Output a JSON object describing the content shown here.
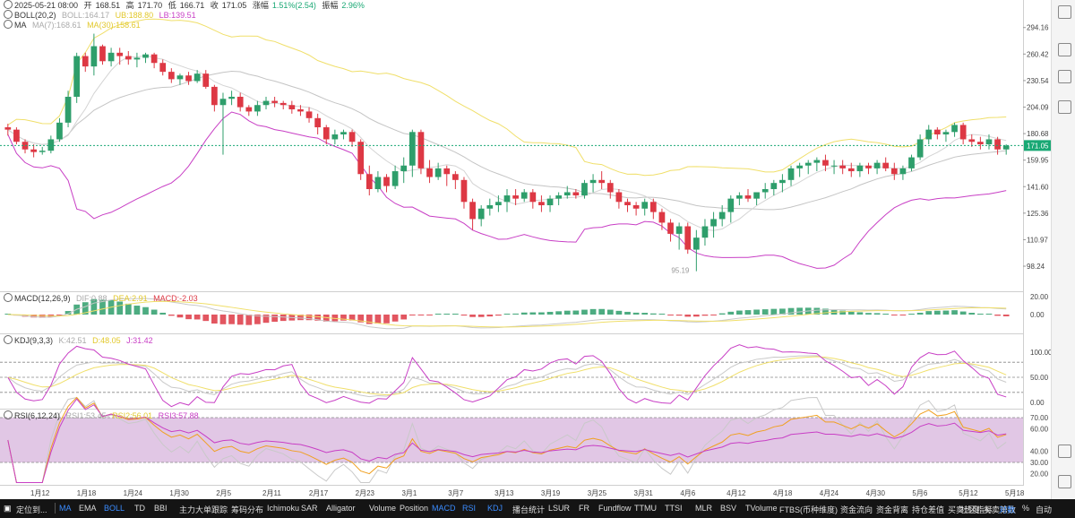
{
  "header": {
    "date": "2025-05-21 08:00",
    "open_label": "开",
    "open": "168.51",
    "high_label": "高",
    "high": "171.70",
    "low_label": "低",
    "low": "166.71",
    "close_label": "收",
    "close": "171.05",
    "change_label": "涨幅",
    "change": "1.51%(2.54)",
    "amp_label": "振幅",
    "amp": "2.96%",
    "boll_name": "BOLL(20,2)",
    "boll_mid": "BOLL:164.17",
    "boll_up": "UB:188.80",
    "boll_low": "LB:139.51",
    "ma_name": "MA",
    "ma_val": "MA(7):168.61",
    "ma_val2": "MA(30):158.61"
  },
  "macd_header": {
    "name": "MACD(12,26,9)",
    "dif": "DIF:0.88",
    "dea": "DEA:2.91",
    "macd": "MACD:-2.03"
  },
  "kdj_header": {
    "name": "KDJ(9,3,3)",
    "k": "K:42.51",
    "d": "D:48.05",
    "j": "J:31.42"
  },
  "rsi_header": {
    "name": "RSI(6,12,24)",
    "r1": "RSI1:53.45",
    "r2": "RSI2:56.01",
    "r3": "RSI3:57.88"
  },
  "low_marker": "95.19",
  "colors": {
    "up": "#2e9e6b",
    "down": "#dd3844",
    "ma7": "#d4d4d4",
    "boll_up": "#f0df6a",
    "boll_mid": "#c4c4c4",
    "boll_low": "#c83fc5",
    "rsi_fill": "#d7b4dc",
    "last_price": "#19a874"
  },
  "time_labels": [
    "1月12",
    "1月18",
    "1月24",
    "1月30",
    "2月5",
    "2月11",
    "2月17",
    "2月23",
    "3月1",
    "3月7",
    "3月13",
    "3月19",
    "3月25",
    "3月31",
    "4月6",
    "4月12",
    "4月18",
    "4月24",
    "4月30",
    "5月6",
    "5月12",
    "5月18"
  ],
  "indicator_bar": {
    "left_label": "定位到...",
    "items": [
      "MA",
      "EMA",
      "BOLL",
      "TD",
      "BBI",
      "主力大单跟踪",
      "筹码分布",
      "Ichimoku",
      "SAR",
      "Alligator",
      "Volume",
      "Position",
      "MACD",
      "RSI",
      "KDJ",
      "播台统计",
      "LSUR",
      "FR",
      "Fundflow",
      "TTMU",
      "TTSI",
      "MLR",
      "BSV",
      "TVolume",
      "FTBS(币种维度)",
      "资金流向",
      "资金背离",
      "持仓差值",
      "买卖热度",
      "买卖第数"
    ],
    "active": [
      "MA",
      "BOLL",
      "MACD",
      "RSI",
      "KDJ"
    ],
    "right_items": [
      "社区指标",
      "对数",
      "%",
      "自动"
    ]
  },
  "chart_data": {
    "type": "candlestick",
    "price_ticks": [
      294.16,
      260.42,
      230.54,
      204.09,
      180.68,
      159.95,
      141.6,
      125.36,
      110.97,
      98.24
    ],
    "last_price": "171.05",
    "ylim": [
      89,
      310
    ],
    "scale": "log",
    "candles": [
      [
        186,
        189,
        179,
        184
      ],
      [
        184,
        186,
        172,
        174
      ],
      [
        174,
        176,
        165,
        168
      ],
      [
        168,
        172,
        162,
        166
      ],
      [
        166,
        170,
        164,
        167
      ],
      [
        167,
        179,
        165,
        176
      ],
      [
        176,
        194,
        174,
        190
      ],
      [
        190,
        220,
        186,
        214
      ],
      [
        214,
        262,
        208,
        258
      ],
      [
        258,
        262,
        240,
        246
      ],
      [
        246,
        286,
        236,
        270
      ],
      [
        270,
        272,
        248,
        252
      ],
      [
        252,
        268,
        246,
        262
      ],
      [
        262,
        268,
        248,
        258
      ],
      [
        258,
        264,
        248,
        254
      ],
      [
        254,
        262,
        245,
        256
      ],
      [
        256,
        262,
        250,
        260
      ],
      [
        260,
        262,
        244,
        250
      ],
      [
        250,
        254,
        236,
        240
      ],
      [
        240,
        244,
        228,
        232
      ],
      [
        232,
        238,
        226,
        236
      ],
      [
        236,
        240,
        226,
        230
      ],
      [
        230,
        242,
        228,
        238
      ],
      [
        238,
        242,
        222,
        224
      ],
      [
        224,
        226,
        200,
        206
      ],
      [
        206,
        218,
        164,
        212
      ],
      [
        212,
        220,
        206,
        214
      ],
      [
        214,
        218,
        200,
        204
      ],
      [
        204,
        206,
        196,
        200
      ],
      [
        200,
        210,
        196,
        206
      ],
      [
        206,
        214,
        202,
        210
      ],
      [
        210,
        214,
        204,
        208
      ],
      [
        208,
        210,
        202,
        206
      ],
      [
        206,
        210,
        198,
        202
      ],
      [
        202,
        206,
        196,
        200
      ],
      [
        200,
        204,
        190,
        194
      ],
      [
        194,
        198,
        180,
        186
      ],
      [
        186,
        188,
        172,
        176
      ],
      [
        176,
        184,
        172,
        180
      ],
      [
        180,
        184,
        176,
        182
      ],
      [
        182,
        184,
        170,
        174
      ],
      [
        174,
        176,
        146,
        150
      ],
      [
        150,
        156,
        136,
        140
      ],
      [
        140,
        152,
        138,
        148
      ],
      [
        148,
        150,
        138,
        142
      ],
      [
        142,
        156,
        140,
        152
      ],
      [
        152,
        162,
        144,
        156
      ],
      [
        156,
        184,
        148,
        182
      ],
      [
        182,
        184,
        150,
        154
      ],
      [
        154,
        160,
        144,
        148
      ],
      [
        148,
        158,
        146,
        154
      ],
      [
        154,
        156,
        142,
        150
      ],
      [
        150,
        152,
        140,
        146
      ],
      [
        146,
        148,
        128,
        132
      ],
      [
        132,
        134,
        116,
        122
      ],
      [
        122,
        130,
        118,
        128
      ],
      [
        128,
        134,
        124,
        130
      ],
      [
        130,
        136,
        126,
        132
      ],
      [
        132,
        140,
        126,
        136
      ],
      [
        136,
        140,
        130,
        134
      ],
      [
        134,
        140,
        132,
        138
      ],
      [
        138,
        140,
        128,
        132
      ],
      [
        132,
        136,
        126,
        130
      ],
      [
        130,
        136,
        126,
        134
      ],
      [
        134,
        138,
        130,
        136
      ],
      [
        136,
        142,
        134,
        138
      ],
      [
        138,
        140,
        134,
        136
      ],
      [
        136,
        146,
        134,
        144
      ],
      [
        144,
        150,
        138,
        146
      ],
      [
        146,
        152,
        140,
        144
      ],
      [
        144,
        146,
        134,
        138
      ],
      [
        138,
        140,
        128,
        132
      ],
      [
        132,
        134,
        126,
        130
      ],
      [
        130,
        132,
        124,
        128
      ],
      [
        128,
        134,
        124,
        132
      ],
      [
        132,
        134,
        122,
        126
      ],
      [
        126,
        128,
        116,
        120
      ],
      [
        120,
        122,
        110,
        114
      ],
      [
        114,
        120,
        106,
        118
      ],
      [
        118,
        120,
        104,
        106
      ],
      [
        106,
        116,
        96,
        112
      ],
      [
        112,
        122,
        108,
        118
      ],
      [
        118,
        126,
        112,
        122
      ],
      [
        122,
        130,
        118,
        126
      ],
      [
        126,
        136,
        120,
        134
      ],
      [
        134,
        138,
        130,
        136
      ],
      [
        136,
        140,
        132,
        134
      ],
      [
        134,
        138,
        130,
        138
      ],
      [
        138,
        144,
        134,
        140
      ],
      [
        140,
        146,
        136,
        144
      ],
      [
        144,
        150,
        138,
        146
      ],
      [
        146,
        156,
        142,
        154
      ],
      [
        154,
        158,
        148,
        156
      ],
      [
        156,
        160,
        150,
        158
      ],
      [
        158,
        162,
        152,
        160
      ],
      [
        160,
        164,
        152,
        156
      ],
      [
        156,
        160,
        150,
        156
      ],
      [
        156,
        160,
        150,
        154
      ],
      [
        154,
        158,
        148,
        152
      ],
      [
        152,
        158,
        148,
        156
      ],
      [
        156,
        158,
        150,
        154
      ],
      [
        154,
        160,
        150,
        158
      ],
      [
        158,
        162,
        152,
        154
      ],
      [
        154,
        158,
        146,
        150
      ],
      [
        150,
        156,
        146,
        154
      ],
      [
        154,
        164,
        152,
        162
      ],
      [
        162,
        180,
        160,
        176
      ],
      [
        176,
        188,
        172,
        184
      ],
      [
        184,
        186,
        176,
        180
      ],
      [
        180,
        184,
        174,
        182
      ],
      [
        182,
        190,
        178,
        188
      ],
      [
        188,
        190,
        172,
        176
      ],
      [
        176,
        180,
        170,
        174
      ],
      [
        174,
        178,
        168,
        172
      ],
      [
        172,
        180,
        168,
        176
      ],
      [
        176,
        178,
        164,
        168
      ],
      [
        168,
        172,
        164,
        171
      ]
    ],
    "macd_ticks": [
      20.0,
      0.0
    ],
    "kdj_ticks": [
      100.0,
      50.0,
      0.0
    ],
    "rsi_ticks": [
      70.0,
      60.0,
      40.0,
      30.0,
      20.0
    ]
  }
}
